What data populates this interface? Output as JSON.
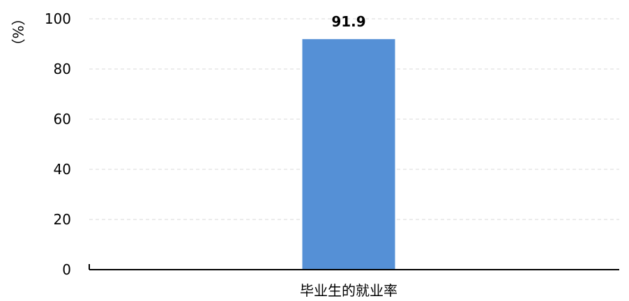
{
  "chart_data": {
    "type": "bar",
    "categories": [
      "毕业生的就业率"
    ],
    "series": [
      {
        "values": [
          91.9
        ]
      }
    ],
    "data_labels": [
      "91.9"
    ],
    "ylabel": "（%）",
    "ylim": [
      0,
      100
    ],
    "yticks": [
      0,
      20,
      40,
      60,
      80,
      100
    ],
    "grid": true,
    "colors": {
      "bar": "#5590d6",
      "grid": "#d9d9d9",
      "axis": "#000000"
    }
  }
}
